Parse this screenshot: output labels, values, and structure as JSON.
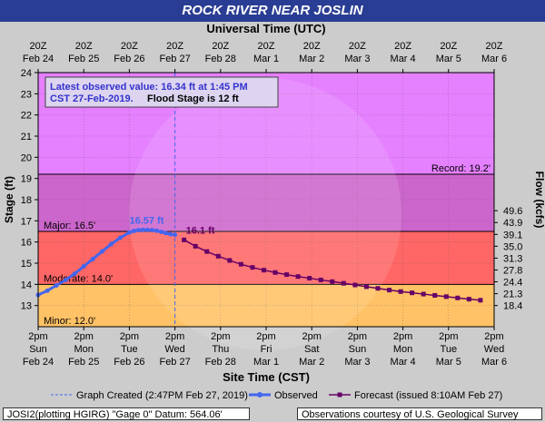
{
  "chart_data": {
    "type": "line",
    "title": "ROCK RIVER NEAR JOSLIN",
    "top_axis_title": "Universal Time (UTC)",
    "bottom_axis_title": "Site Time (CST)",
    "ylabel": "Stage (ft)",
    "y2label": "Flow (kcfs)",
    "ylim": [
      12,
      24
    ],
    "yticks": [
      13,
      14,
      15,
      16,
      17,
      18,
      19,
      20,
      21,
      22,
      23,
      24
    ],
    "flow_ticks": [
      {
        "stage": 13,
        "label": "18.4"
      },
      {
        "stage": 13.56,
        "label": "21.3"
      },
      {
        "stage": 14.12,
        "label": "24.4"
      },
      {
        "stage": 14.68,
        "label": "27.8"
      },
      {
        "stage": 15.24,
        "label": "31.3"
      },
      {
        "stage": 15.8,
        "label": "35.0"
      },
      {
        "stage": 16.36,
        "label": "39.1"
      },
      {
        "stage": 16.92,
        "label": "43.9"
      },
      {
        "stage": 17.48,
        "label": "49.6"
      }
    ],
    "x_days": 11,
    "top_ticks": [
      {
        "l1": "20Z",
        "l2": "Feb 24"
      },
      {
        "l1": "20Z",
        "l2": "Feb 25"
      },
      {
        "l1": "20Z",
        "l2": "Feb 26"
      },
      {
        "l1": "20Z",
        "l2": "Feb 27"
      },
      {
        "l1": "20Z",
        "l2": "Feb 28"
      },
      {
        "l1": "20Z",
        "l2": "Mar 1"
      },
      {
        "l1": "20Z",
        "l2": "Mar 2"
      },
      {
        "l1": "20Z",
        "l2": "Mar 3"
      },
      {
        "l1": "20Z",
        "l2": "Mar 4"
      },
      {
        "l1": "20Z",
        "l2": "Mar 5"
      },
      {
        "l1": "20Z",
        "l2": "Mar 6"
      }
    ],
    "bottom_ticks": [
      {
        "l1": "2pm",
        "l2": "Sun",
        "l3": "Feb 24"
      },
      {
        "l1": "2pm",
        "l2": "Mon",
        "l3": "Feb 25"
      },
      {
        "l1": "2pm",
        "l2": "Tue",
        "l3": "Feb 26"
      },
      {
        "l1": "2pm",
        "l2": "Wed",
        "l3": "Feb 27"
      },
      {
        "l1": "2pm",
        "l2": "Thu",
        "l3": "Feb 28"
      },
      {
        "l1": "2pm",
        "l2": "Fri",
        "l3": "Mar 1"
      },
      {
        "l1": "2pm",
        "l2": "Sat",
        "l3": "Mar 2"
      },
      {
        "l1": "2pm",
        "l2": "Sun",
        "l3": "Mar 3"
      },
      {
        "l1": "2pm",
        "l2": "Mon",
        "l3": "Mar 4"
      },
      {
        "l1": "2pm",
        "l2": "Tue",
        "l3": "Mar 5"
      },
      {
        "l1": "2pm",
        "l2": "Wed",
        "l3": "Mar 6"
      }
    ],
    "bands": [
      {
        "from": 12,
        "to": 14,
        "color": "#ffc266"
      },
      {
        "from": 14,
        "to": 16.5,
        "color": "#ff6666"
      },
      {
        "from": 16.5,
        "to": 19.2,
        "color": "#cc66cc"
      },
      {
        "from": 19.2,
        "to": 24,
        "color": "#e580ff"
      }
    ],
    "thresholds": [
      {
        "value": 12,
        "label": "Minor: 12.0'",
        "side": "left"
      },
      {
        "value": 14,
        "label": "Moderate: 14.0'",
        "side": "left"
      },
      {
        "value": 16.5,
        "label": "Major: 16.5'",
        "side": "left"
      },
      {
        "value": 19.2,
        "label": "Record: 19.2'",
        "side": "right"
      }
    ],
    "created_day": 3.0,
    "observed": {
      "name": "Observed",
      "color": "#4466ee",
      "x": [
        0.0,
        0.2,
        0.4,
        0.6,
        0.8,
        1.0,
        1.2,
        1.4,
        1.6,
        1.8,
        2.0,
        2.1,
        2.2,
        2.3,
        2.4,
        2.5,
        2.6,
        2.7,
        2.8,
        2.9,
        3.0
      ],
      "y": [
        13.5,
        13.7,
        13.95,
        14.2,
        14.5,
        14.85,
        15.2,
        15.55,
        15.9,
        16.2,
        16.45,
        16.52,
        16.56,
        16.57,
        16.57,
        16.56,
        16.53,
        16.48,
        16.42,
        16.37,
        16.34
      ]
    },
    "forecast": {
      "name": "Forecast (issued 8:10AM Feb 27)",
      "color": "#660066",
      "x": [
        3.2,
        3.45,
        3.7,
        3.95,
        4.2,
        4.45,
        4.7,
        4.95,
        5.2,
        5.45,
        5.7,
        5.95,
        6.2,
        6.45,
        6.7,
        6.95,
        7.2,
        7.45,
        7.7,
        7.95,
        8.2,
        8.45,
        8.7,
        8.95,
        9.2,
        9.45,
        9.7
      ],
      "y": [
        16.1,
        15.8,
        15.55,
        15.33,
        15.13,
        14.95,
        14.8,
        14.67,
        14.56,
        14.46,
        14.37,
        14.29,
        14.21,
        14.13,
        14.05,
        13.97,
        13.89,
        13.81,
        13.73,
        13.66,
        13.6,
        13.54,
        13.48,
        13.42,
        13.36,
        13.3,
        13.25
      ]
    },
    "annotations": [
      {
        "text": "16.57 ft",
        "x": 2.4,
        "y": 16.57,
        "color": "#4466ee"
      },
      {
        "text": "16.1 ft",
        "x": 3.2,
        "y": 16.1,
        "color": "#660066"
      }
    ],
    "info_box": {
      "line1": "Latest observed value: 16.34 ft at 1:45 PM",
      "line2a": "CST 27-Feb-2019.",
      "line2b": "Flood Stage is 12 ft"
    },
    "legend": {
      "created": "Graph Created (2:47PM Feb 27, 2019)",
      "observed": "Observed",
      "forecast": "Forecast (issued 8:10AM Feb 27)"
    },
    "footer_left": "JOSI2(plotting HGIRG) \"Gage 0\" Datum: 564.06'",
    "footer_right": "Observations courtesy of U.S. Geological Survey",
    "colors": {
      "header": "#2a3d94",
      "frame": "#cccccc",
      "created_line": "#4466ee"
    }
  }
}
